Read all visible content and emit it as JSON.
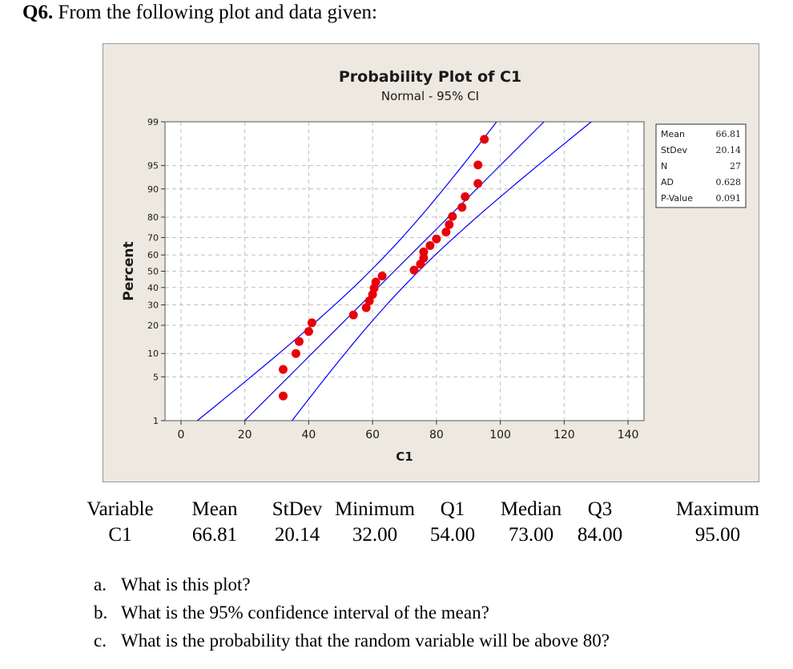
{
  "question": {
    "number": "Q6.",
    "text": "From the following plot and data given:"
  },
  "chart_data": {
    "type": "scatter",
    "title": "Probability Plot of C1",
    "subtitle": "Normal - 95% CI",
    "xlabel": "C1",
    "ylabel": "Percent",
    "xlim": [
      -5,
      145
    ],
    "x_ticks": [
      0,
      20,
      40,
      60,
      80,
      100,
      120,
      140
    ],
    "y_ticks": [
      1,
      5,
      10,
      20,
      30,
      40,
      50,
      60,
      70,
      80,
      90,
      95,
      99
    ],
    "y_scale": "normal-probability",
    "grid": true,
    "points": [
      {
        "x": 32,
        "y": 2.6
      },
      {
        "x": 32,
        "y": 6.3
      },
      {
        "x": 36,
        "y": 10.0
      },
      {
        "x": 37,
        "y": 13.7
      },
      {
        "x": 40,
        "y": 17.4
      },
      {
        "x": 41,
        "y": 21.1
      },
      {
        "x": 54,
        "y": 24.8
      },
      {
        "x": 58,
        "y": 28.5
      },
      {
        "x": 59,
        "y": 32.2
      },
      {
        "x": 60,
        "y": 35.9
      },
      {
        "x": 60.5,
        "y": 39.6
      },
      {
        "x": 61,
        "y": 43.3
      },
      {
        "x": 63,
        "y": 47.0
      },
      {
        "x": 73,
        "y": 50.7
      },
      {
        "x": 75,
        "y": 54.4
      },
      {
        "x": 76,
        "y": 58.1
      },
      {
        "x": 76,
        "y": 61.8
      },
      {
        "x": 78,
        "y": 65.5
      },
      {
        "x": 80,
        "y": 69.2
      },
      {
        "x": 83,
        "y": 72.9
      },
      {
        "x": 84,
        "y": 76.6
      },
      {
        "x": 85,
        "y": 80.3
      },
      {
        "x": 88,
        "y": 84.0
      },
      {
        "x": 89,
        "y": 87.7
      },
      {
        "x": 93,
        "y": 91.4
      },
      {
        "x": 93,
        "y": 95.1
      },
      {
        "x": 95,
        "y": 98.0
      }
    ],
    "fit_line": {
      "mean": 66.81,
      "stdev": 20.14
    },
    "ci_band": {
      "level": "95%",
      "n": 27
    },
    "stats_box": {
      "position": "top-right",
      "rows": [
        {
          "label": "Mean",
          "value": "66.81"
        },
        {
          "label": "StDev",
          "value": "20.14"
        },
        {
          "label": "N",
          "value": "27"
        },
        {
          "label": "AD",
          "value": "0.628"
        },
        {
          "label": "P-Value",
          "value": "0.091"
        }
      ]
    },
    "colors": {
      "points": "#e8000b",
      "lines": "#0000ff",
      "background": "#ede9e0",
      "plot_area": "#ffffff",
      "grid": "#c0c0c0"
    }
  },
  "summary": {
    "headers": [
      "Variable",
      "Mean",
      "StDev",
      "Minimum",
      "Q1",
      "Median",
      "Q3",
      "Maximum"
    ],
    "values": [
      "C1",
      "66.81",
      "20.14",
      "32.00",
      "54.00",
      "73.00",
      "84.00",
      "95.00"
    ]
  },
  "questions": [
    {
      "label": "a.",
      "text": "What is this plot?"
    },
    {
      "label": "b.",
      "text": "What is the 95% confidence interval of the mean?"
    },
    {
      "label": "c.",
      "text": "What is the probability that the random variable will be above 80?"
    }
  ]
}
